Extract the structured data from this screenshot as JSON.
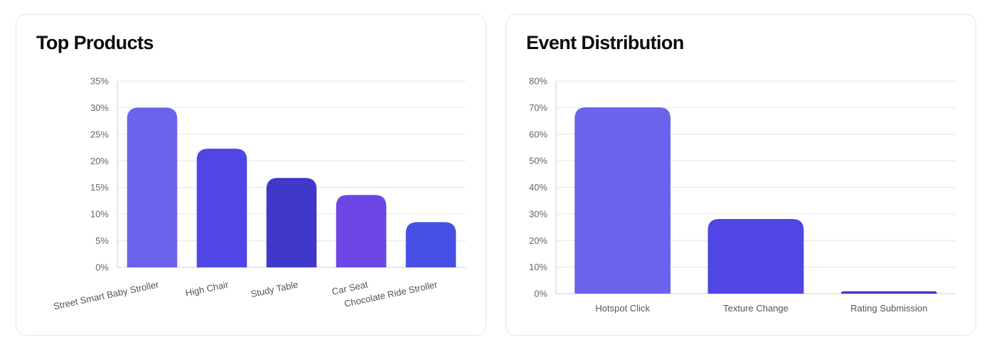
{
  "charts": {
    "top_products": {
      "title": "Top Products"
    },
    "event_distribution": {
      "title": "Event Distribution"
    }
  },
  "chart_data": [
    {
      "type": "bar",
      "title": "Top Products",
      "xlabel": "",
      "ylabel": "",
      "ylim": [
        0,
        35
      ],
      "yticks": [
        "0%",
        "5%",
        "10%",
        "15%",
        "20%",
        "25%",
        "30%",
        "35%"
      ],
      "tick_rotation_deg": -12,
      "categories": [
        "Street Smart Baby Stroller",
        "High Chair",
        "Study Table",
        "Car Seat",
        "Chocolate Ride Stroller"
      ],
      "values": [
        30,
        22.3,
        16.8,
        13.6,
        8.5
      ],
      "colors": [
        "#6c63ec",
        "#4f46e5",
        "#4038c8",
        "#6d45e5",
        "#4650e5"
      ],
      "grid": true,
      "legend": "none"
    },
    {
      "type": "bar",
      "title": "Event Distribution",
      "xlabel": "",
      "ylabel": "",
      "ylim": [
        0,
        80
      ],
      "yticks": [
        "0%",
        "10%",
        "20%",
        "30%",
        "40%",
        "50%",
        "60%",
        "70%",
        "80%"
      ],
      "tick_rotation_deg": 0,
      "categories": [
        "Hotspot Click",
        "Texture Change",
        "Rating Submission"
      ],
      "values": [
        70.1,
        28.1,
        0.9
      ],
      "colors": [
        "#6c63ec",
        "#4f46e5",
        "#4038c8"
      ],
      "grid": true,
      "legend": "none"
    }
  ]
}
